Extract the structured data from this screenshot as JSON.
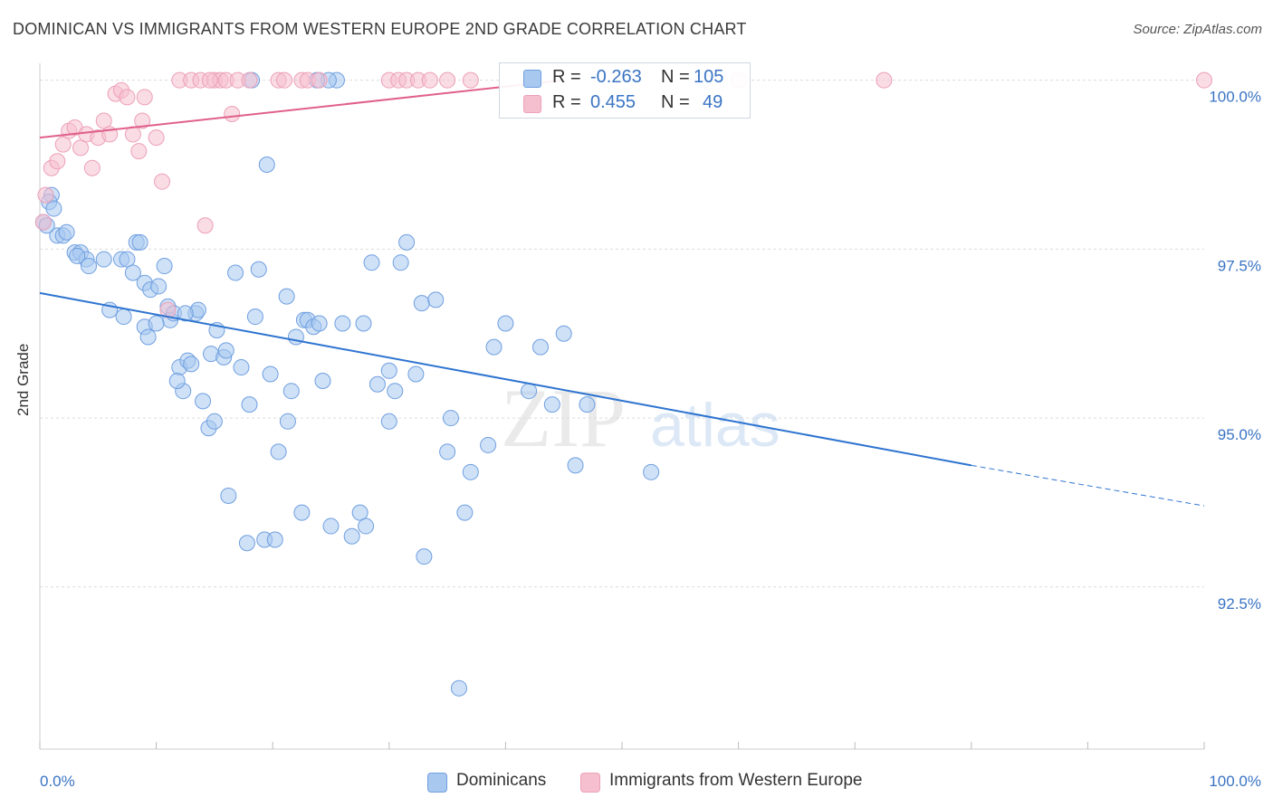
{
  "title": "DOMINICAN VS IMMIGRANTS FROM WESTERN EUROPE 2ND GRADE CORRELATION CHART",
  "source": "Source: ZipAtlas.com",
  "watermark": {
    "zip": "ZIP",
    "atlas": "atlas"
  },
  "legend": {
    "r_label": "R =",
    "n_label": "N =",
    "rows": [
      {
        "r": "-0.263",
        "n": "105"
      },
      {
        "r": "0.455",
        "n": "49"
      }
    ]
  },
  "bottom_legend": [
    "Dominicans",
    "Immigrants from Western Europe"
  ],
  "colors": {
    "blue_fill": "#a8c8f0",
    "blue_stroke": "#6f9fe0",
    "blue_line": "#2e74d0",
    "pink_fill": "#f6bfd0",
    "pink_stroke": "#eca0b8",
    "pink_line": "#e0608c",
    "grid": "#dcdcdc",
    "tick_label": "#3a74c4"
  },
  "chart_data": {
    "type": "scatter",
    "title": "DOMINICAN VS IMMIGRANTS FROM WESTERN EUROPE 2ND GRADE CORRELATION CHART",
    "xlabel": "",
    "ylabel": "2nd Grade",
    "xlim": [
      0,
      100
    ],
    "ylim": [
      90.1,
      100.25
    ],
    "x_tick_labels": [
      "0.0%",
      "100.0%"
    ],
    "y_ticks": [
      92.5,
      95.0,
      97.5,
      100.0
    ],
    "y_tick_labels": [
      "92.5%",
      "95.0%",
      "97.5%",
      "100.0%"
    ],
    "grid": true,
    "series": [
      {
        "name": "Dominicans",
        "r": -0.263,
        "n": 105,
        "trend": {
          "x": [
            0,
            80
          ],
          "y": [
            96.85,
            94.3
          ],
          "dashed_to": [
            100,
            93.7
          ]
        },
        "points": [
          [
            0.3,
            97.9
          ],
          [
            1.0,
            98.3
          ],
          [
            0.8,
            98.2
          ],
          [
            1.5,
            97.7
          ],
          [
            2.0,
            97.7
          ],
          [
            2.3,
            97.75
          ],
          [
            3.0,
            97.45
          ],
          [
            3.5,
            97.45
          ],
          [
            4.0,
            97.35
          ],
          [
            4.2,
            97.25
          ],
          [
            5.5,
            97.35
          ],
          [
            7.0,
            97.35
          ],
          [
            7.5,
            97.35
          ],
          [
            8.0,
            97.15
          ],
          [
            8.3,
            97.6
          ],
          [
            8.6,
            97.6
          ],
          [
            9.0,
            96.35
          ],
          [
            9.3,
            96.2
          ],
          [
            9.0,
            97.0
          ],
          [
            9.5,
            96.9
          ],
          [
            10.2,
            96.95
          ],
          [
            10.7,
            97.25
          ],
          [
            11.0,
            96.65
          ],
          [
            11.2,
            96.45
          ],
          [
            11.5,
            96.55
          ],
          [
            12.0,
            95.75
          ],
          [
            12.3,
            95.4
          ],
          [
            12.7,
            95.85
          ],
          [
            13.0,
            95.8
          ],
          [
            13.4,
            96.55
          ],
          [
            13.6,
            96.6
          ],
          [
            14.0,
            95.25
          ],
          [
            14.5,
            94.85
          ],
          [
            14.7,
            95.95
          ],
          [
            15.0,
            94.95
          ],
          [
            15.2,
            96.3
          ],
          [
            15.8,
            95.9
          ],
          [
            16.2,
            93.85
          ],
          [
            16.8,
            97.15
          ],
          [
            17.3,
            95.75
          ],
          [
            17.8,
            93.15
          ],
          [
            18.0,
            95.2
          ],
          [
            18.5,
            96.5
          ],
          [
            18.8,
            97.2
          ],
          [
            19.3,
            93.2
          ],
          [
            19.5,
            98.75
          ],
          [
            19.8,
            95.65
          ],
          [
            20.2,
            93.2
          ],
          [
            20.5,
            94.5
          ],
          [
            21.2,
            96.8
          ],
          [
            21.3,
            94.95
          ],
          [
            21.6,
            95.4
          ],
          [
            22.0,
            96.2
          ],
          [
            22.5,
            93.6
          ],
          [
            22.7,
            96.45
          ],
          [
            23.0,
            96.45
          ],
          [
            23.5,
            96.35
          ],
          [
            24.0,
            96.4
          ],
          [
            24.3,
            95.55
          ],
          [
            25.0,
            93.4
          ],
          [
            25.5,
            100.0
          ],
          [
            26.8,
            93.25
          ],
          [
            27.5,
            93.6
          ],
          [
            27.8,
            96.4
          ],
          [
            28.0,
            93.4
          ],
          [
            28.5,
            97.3
          ],
          [
            30.0,
            95.7
          ],
          [
            30.0,
            94.95
          ],
          [
            30.5,
            95.4
          ],
          [
            31.0,
            97.3
          ],
          [
            31.5,
            97.6
          ],
          [
            32.3,
            95.65
          ],
          [
            32.8,
            96.7
          ],
          [
            33.0,
            92.95
          ],
          [
            34.0,
            96.75
          ],
          [
            35.0,
            94.5
          ],
          [
            35.3,
            95.0
          ],
          [
            36.0,
            91.0
          ],
          [
            36.5,
            93.6
          ],
          [
            37.0,
            94.2
          ],
          [
            38.5,
            94.6
          ],
          [
            39.0,
            96.05
          ],
          [
            40.0,
            96.4
          ],
          [
            42.0,
            95.4
          ],
          [
            43.0,
            96.05
          ],
          [
            44.0,
            95.2
          ],
          [
            45.0,
            96.25
          ],
          [
            46.0,
            94.3
          ],
          [
            47.0,
            95.2
          ],
          [
            52.5,
            94.2
          ],
          [
            57.0,
            100.0
          ],
          [
            0.6,
            97.85
          ],
          [
            1.2,
            98.1
          ],
          [
            3.2,
            97.4
          ],
          [
            6.0,
            96.6
          ],
          [
            7.2,
            96.5
          ],
          [
            10.0,
            96.4
          ],
          [
            12.5,
            96.55
          ],
          [
            16.0,
            96.0
          ],
          [
            26.0,
            96.4
          ],
          [
            29.0,
            95.5
          ],
          [
            11.8,
            95.55
          ],
          [
            18.2,
            100.0
          ],
          [
            24.8,
            100.0
          ],
          [
            23.8,
            100.0
          ]
        ]
      },
      {
        "name": "Immigrants from Western Europe",
        "r": 0.455,
        "n": 49,
        "trend": {
          "x": [
            0,
            45
          ],
          "y": [
            99.15,
            100.0
          ]
        },
        "points": [
          [
            0.3,
            97.9
          ],
          [
            0.5,
            98.3
          ],
          [
            1.0,
            98.7
          ],
          [
            1.5,
            98.8
          ],
          [
            2.0,
            99.05
          ],
          [
            2.5,
            99.25
          ],
          [
            3.0,
            99.3
          ],
          [
            3.5,
            99.0
          ],
          [
            4.0,
            99.2
          ],
          [
            4.5,
            98.7
          ],
          [
            5.0,
            99.15
          ],
          [
            5.5,
            99.4
          ],
          [
            6.0,
            99.2
          ],
          [
            6.5,
            99.8
          ],
          [
            7.0,
            99.85
          ],
          [
            7.5,
            99.75
          ],
          [
            8.0,
            99.2
          ],
          [
            8.5,
            98.95
          ],
          [
            8.8,
            99.4
          ],
          [
            9.0,
            99.75
          ],
          [
            10.0,
            99.15
          ],
          [
            10.5,
            98.5
          ],
          [
            11.0,
            96.6
          ],
          [
            12.0,
            100.0
          ],
          [
            13.0,
            100.0
          ],
          [
            13.8,
            100.0
          ],
          [
            14.2,
            97.85
          ],
          [
            15.0,
            100.0
          ],
          [
            15.5,
            100.0
          ],
          [
            16.0,
            100.0
          ],
          [
            16.5,
            99.5
          ],
          [
            17.0,
            100.0
          ],
          [
            18.0,
            100.0
          ],
          [
            20.5,
            100.0
          ],
          [
            21.0,
            100.0
          ],
          [
            22.5,
            100.0
          ],
          [
            23.0,
            100.0
          ],
          [
            24.0,
            100.0
          ],
          [
            30.0,
            100.0
          ],
          [
            30.8,
            100.0
          ],
          [
            31.5,
            100.0
          ],
          [
            32.5,
            100.0
          ],
          [
            33.5,
            100.0
          ],
          [
            35.0,
            100.0
          ],
          [
            37.0,
            100.0
          ],
          [
            60.0,
            100.0
          ],
          [
            72.5,
            100.0
          ],
          [
            100.0,
            100.0
          ],
          [
            14.6,
            100.0
          ]
        ]
      }
    ]
  }
}
